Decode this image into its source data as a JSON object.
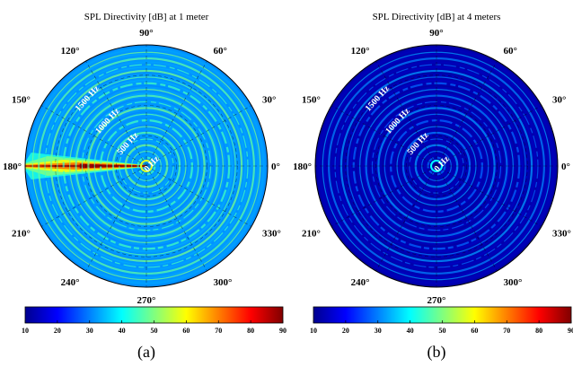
{
  "chart_data": [
    {
      "type": "heatmap",
      "subtype": "polar",
      "title": "SPL Directivity [dB] at 1 meter",
      "angular_ticks": [
        "0°",
        "30°",
        "60°",
        "90°",
        "120°",
        "150°",
        "180°",
        "210°",
        "240°",
        "270°",
        "300°",
        "330°"
      ],
      "angular_tick_values": [
        0,
        30,
        60,
        90,
        120,
        150,
        180,
        210,
        240,
        270,
        300,
        330
      ],
      "radial_axis": "frequency",
      "radial_ticks": [
        "0 Hz",
        "500 Hz",
        "1000 Hz",
        "1500 Hz"
      ],
      "radial_tick_values": [
        0,
        500,
        1000,
        1500
      ],
      "rlim": [
        0,
        2000
      ],
      "colorbar": {
        "ticks": [
          "10",
          "20",
          "30",
          "40",
          "50",
          "60",
          "70",
          "80",
          "90"
        ],
        "range": [
          10,
          90
        ],
        "colormap": "jet",
        "placement": "bottom"
      },
      "background_level_db": 32,
      "ring_level_db": 45,
      "hotspot": {
        "angle_deg": 180,
        "peak_db": 88,
        "description_range_hz": [
          0,
          800
        ]
      },
      "grid": true,
      "caption": "(a)"
    },
    {
      "type": "heatmap",
      "subtype": "polar",
      "title": "SPL Directivity [dB] at 4 meters",
      "angular_ticks": [
        "0°",
        "30°",
        "60°",
        "90°",
        "120°",
        "150°",
        "180°",
        "210°",
        "240°",
        "270°",
        "300°",
        "330°"
      ],
      "angular_tick_values": [
        0,
        30,
        60,
        90,
        120,
        150,
        180,
        210,
        240,
        270,
        300,
        330
      ],
      "radial_axis": "frequency",
      "radial_ticks": [
        "0 Hz",
        "500 Hz",
        "1000 Hz",
        "1500 Hz"
      ],
      "radial_tick_values": [
        0,
        500,
        1000,
        1500
      ],
      "rlim": [
        0,
        2000
      ],
      "colorbar": {
        "ticks": [
          "10",
          "20",
          "30",
          "40",
          "50",
          "60",
          "70",
          "80",
          "90"
        ],
        "range": [
          10,
          90
        ],
        "colormap": "jet",
        "placement": "bottom"
      },
      "background_level_db": 14,
      "ring_level_db": 28,
      "grid": true,
      "caption": "(b)"
    }
  ],
  "colors": {
    "jet_low": "#00008f",
    "jet_high": "#800000",
    "grid": "#000000"
  }
}
